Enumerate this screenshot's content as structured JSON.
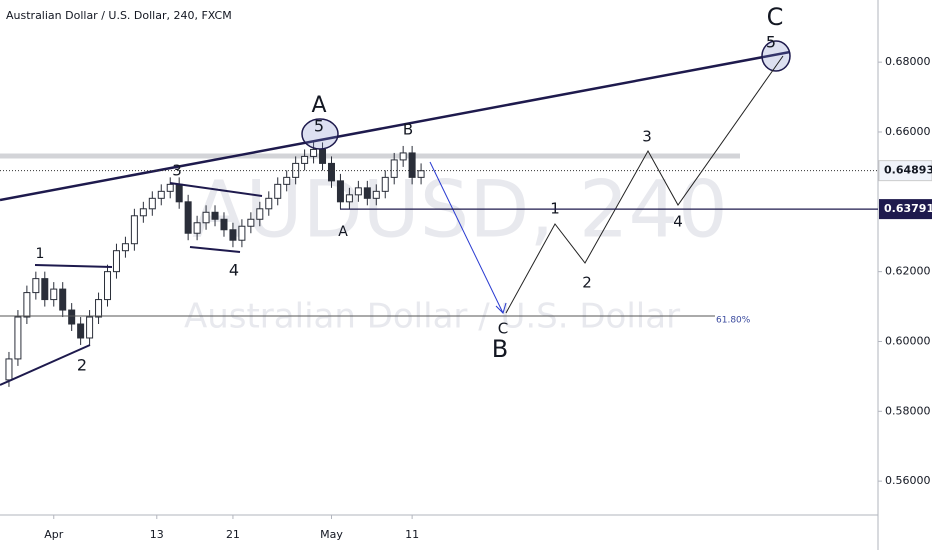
{
  "chart_data": {
    "type": "candlestick",
    "title": "Australian Dollar / U.S. Dollar, 240, FXCM",
    "watermark": "AUDUSD, 240",
    "watermark_subtitle": "Australian Dollar / U.S. Dollar",
    "categories": [
      null,
      null,
      null,
      null,
      null,
      null,
      null,
      null,
      null,
      null,
      null,
      null,
      null,
      null,
      null,
      null,
      null,
      null,
      null,
      null,
      null,
      null,
      null,
      null,
      null,
      null,
      null,
      null,
      null,
      null,
      null,
      null,
      null,
      null,
      null,
      null,
      null,
      null,
      null,
      null,
      null,
      null,
      null,
      null,
      null,
      null,
      null
    ],
    "open": [
      0.589,
      0.595,
      0.607,
      0.614,
      0.618,
      0.612,
      0.615,
      0.609,
      0.605,
      0.601,
      0.607,
      0.612,
      0.62,
      0.626,
      0.628,
      0.636,
      0.638,
      0.641,
      0.643,
      0.645,
      0.64,
      0.631,
      0.634,
      0.637,
      0.635,
      0.632,
      0.629,
      0.633,
      0.635,
      0.638,
      0.641,
      0.645,
      0.647,
      0.651,
      0.653,
      0.655,
      0.651,
      0.646,
      0.64,
      0.642,
      0.644,
      0.641,
      0.643,
      0.647,
      0.652,
      0.654,
      0.647
    ],
    "high": [
      0.597,
      0.609,
      0.616,
      0.62,
      0.62,
      0.617,
      0.617,
      0.611,
      0.607,
      0.609,
      0.614,
      0.622,
      0.628,
      0.63,
      0.638,
      0.64,
      0.643,
      0.645,
      0.647,
      0.647,
      0.642,
      0.636,
      0.639,
      0.639,
      0.637,
      0.634,
      0.635,
      0.637,
      0.64,
      0.643,
      0.647,
      0.649,
      0.653,
      0.655,
      0.657,
      0.657,
      0.653,
      0.648,
      0.644,
      0.646,
      0.646,
      0.645,
      0.649,
      0.654,
      0.656,
      0.656,
      0.651
    ],
    "low": [
      0.587,
      0.593,
      0.605,
      0.612,
      0.61,
      0.61,
      0.607,
      0.603,
      0.599,
      0.599,
      0.605,
      0.61,
      0.618,
      0.624,
      0.626,
      0.634,
      0.636,
      0.639,
      0.641,
      0.638,
      0.629,
      0.629,
      0.632,
      0.633,
      0.63,
      0.627,
      0.627,
      0.631,
      0.633,
      0.636,
      0.639,
      0.643,
      0.645,
      0.649,
      0.651,
      0.649,
      0.644,
      0.638,
      0.638,
      0.64,
      0.639,
      0.639,
      0.641,
      0.645,
      0.65,
      0.645,
      0.645
    ],
    "close": [
      0.595,
      0.607,
      0.614,
      0.618,
      0.612,
      0.615,
      0.609,
      0.605,
      0.601,
      0.607,
      0.612,
      0.62,
      0.626,
      0.628,
      0.636,
      0.638,
      0.641,
      0.643,
      0.645,
      0.64,
      0.631,
      0.634,
      0.637,
      0.635,
      0.632,
      0.629,
      0.633,
      0.635,
      0.638,
      0.641,
      0.645,
      0.647,
      0.651,
      0.653,
      0.655,
      0.651,
      0.646,
      0.64,
      0.642,
      0.644,
      0.641,
      0.643,
      0.647,
      0.652,
      0.654,
      0.647,
      0.6489
    ],
    "up_color": "#ffffff",
    "down_color": "#2a2e39",
    "xlim": [
      -1,
      97
    ],
    "xticks": [
      {
        "value": 5,
        "label": "Apr"
      },
      {
        "value": 16.5,
        "label": "13"
      },
      {
        "value": 25,
        "label": "21"
      },
      {
        "value": 36,
        "label": "May"
      },
      {
        "value": 45,
        "label": "11"
      }
    ],
    "ylim": [
      0.5503,
      0.6978
    ],
    "yticks": [
      {
        "value": 0.56,
        "label": "0.56000"
      },
      {
        "value": 0.58,
        "label": "0.58000"
      },
      {
        "value": 0.6,
        "label": "0.60000"
      },
      {
        "value": 0.62,
        "label": "0.62000"
      },
      {
        "value": 0.66,
        "label": "0.66000"
      },
      {
        "value": 0.68,
        "label": "0.68000"
      }
    ],
    "price_lines": [
      {
        "value": 0.64893,
        "label": "0.64893"
      },
      {
        "value": 0.63791,
        "label": "0.63791"
      }
    ],
    "fib_level": {
      "value": 0.6073,
      "label": "61.80%"
    },
    "annotations": [
      "1",
      "2",
      "3",
      "4",
      "A",
      "5",
      "B",
      "A",
      "C",
      "B",
      "1",
      "2",
      "3",
      "4",
      "C",
      "5"
    ]
  }
}
